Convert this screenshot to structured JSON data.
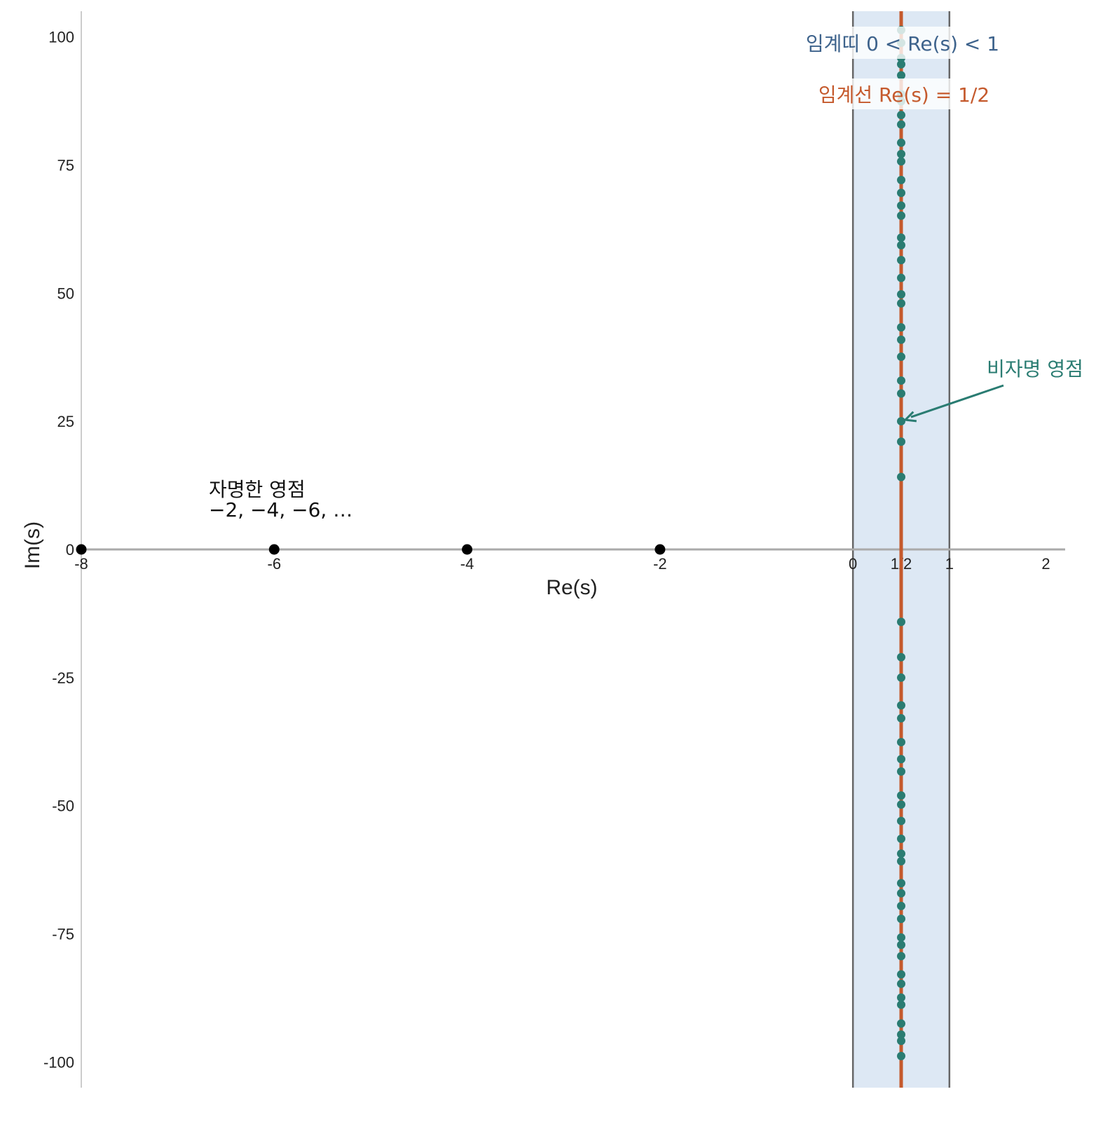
{
  "chart_data": {
    "type": "scatter",
    "xlabel": "Re(s)",
    "ylabel": "Im(s)",
    "xlim": [
      -8,
      2.2
    ],
    "ylim": [
      -105,
      105
    ],
    "x_ticks": [
      {
        "value": -8,
        "label": "-8"
      },
      {
        "value": -6,
        "label": "-6"
      },
      {
        "value": -4,
        "label": "-4"
      },
      {
        "value": -2,
        "label": "-2"
      },
      {
        "value": 0,
        "label": "0"
      },
      {
        "value": 0.5,
        "label": "1/2"
      },
      {
        "value": 1,
        "label": "1"
      },
      {
        "value": 2,
        "label": "2"
      }
    ],
    "y_ticks": [
      {
        "value": 100,
        "label": "100"
      },
      {
        "value": 75,
        "label": "75"
      },
      {
        "value": 50,
        "label": "50"
      },
      {
        "value": 25,
        "label": "25"
      },
      {
        "value": 0,
        "label": "0"
      },
      {
        "value": -25,
        "label": "-25"
      },
      {
        "value": -50,
        "label": "-50"
      },
      {
        "value": -75,
        "label": "-75"
      },
      {
        "value": -100,
        "label": "-100"
      }
    ],
    "grid": false,
    "critical_strip": {
      "x0": 0,
      "x1": 1,
      "label": "임계띠  0 < Re(s) < 1"
    },
    "critical_line": {
      "x": 0.5,
      "label": "임계선  Re(s) = 1/2"
    },
    "series": [
      {
        "name": "자명한 영점",
        "label_lines": [
          "자명한 영점",
          "−2, −4, −6, …"
        ],
        "points": [
          {
            "x": -8,
            "y": 0
          },
          {
            "x": -6,
            "y": 0
          },
          {
            "x": -4,
            "y": 0
          },
          {
            "x": -2,
            "y": 0
          }
        ]
      },
      {
        "name": "비자명 영점",
        "label": "비자명 영점",
        "x": 0.5,
        "imag_parts": [
          14.13,
          21.02,
          25.01,
          30.42,
          32.94,
          37.59,
          40.92,
          43.33,
          48.01,
          49.77,
          52.97,
          56.45,
          59.35,
          60.83,
          65.11,
          67.08,
          69.55,
          72.07,
          75.7,
          77.14,
          79.34,
          82.91,
          84.74,
          87.43,
          88.81,
          92.49,
          94.65,
          95.87,
          98.83,
          101.32,
          -14.13,
          -21.02,
          -25.01,
          -30.42,
          -32.94,
          -37.59,
          -40.92,
          -43.33,
          -48.01,
          -49.77,
          -52.97,
          -56.45,
          -59.35,
          -60.83,
          -65.11,
          -67.08,
          -69.55,
          -72.07,
          -75.7,
          -77.14,
          -79.34,
          -82.91,
          -84.74,
          -87.43,
          -88.81,
          -92.49,
          -94.65,
          -95.87,
          -98.83
        ]
      }
    ],
    "annotations": [
      {
        "text": "비자명 영점",
        "target": {
          "x": 0.5,
          "y": 25.01
        }
      }
    ]
  },
  "colors": {
    "strip_fill": "#dde8f4",
    "strip_border": "#666666",
    "critical_line": "#c55a2d",
    "nontrivial_zero": "#2a7c72",
    "trivial_zero": "#000000",
    "real_axis": "#aaaaaa",
    "left_axis": "#cccccc",
    "strip_label": "#3e638c",
    "line_label": "#c55a2d",
    "annotation": "#2a7c72"
  }
}
